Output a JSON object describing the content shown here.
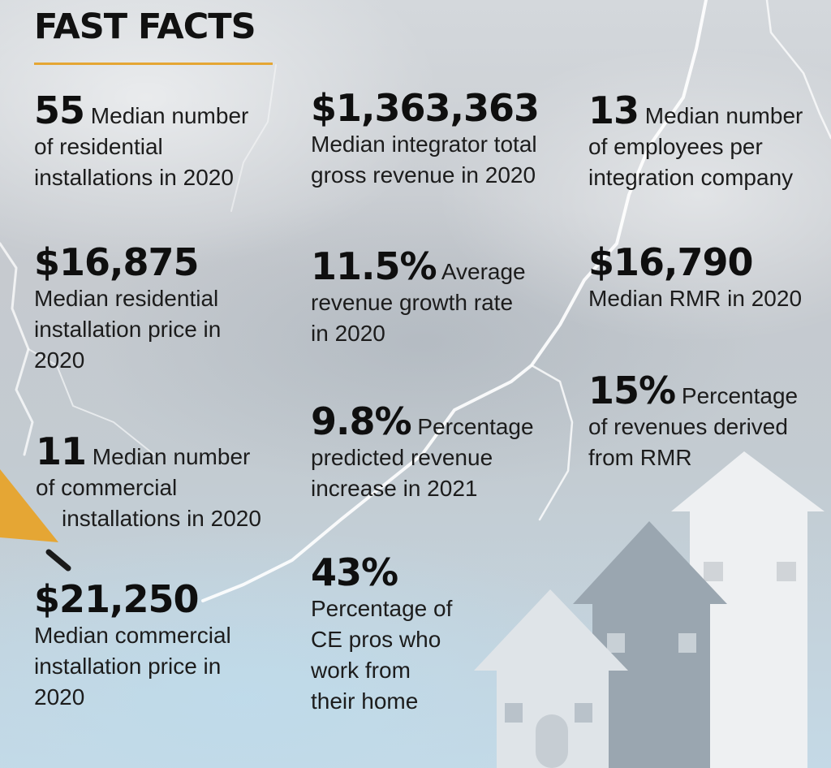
{
  "header": {
    "title": "FAST FACTS"
  },
  "colors": {
    "accent": "#e5a634",
    "text": "#141414"
  },
  "facts": {
    "residential_installs": {
      "value": "55",
      "line1": "Median number",
      "line2": "of residential",
      "line3": "installations in 2020"
    },
    "gross_revenue": {
      "value": "$1,363,363",
      "line1": "Median integrator total",
      "line2": "gross revenue in 2020"
    },
    "employees": {
      "value": "13",
      "line1": "Median number",
      "line2": "of employees per",
      "line3": "integration company"
    },
    "residential_price": {
      "value": "$16,875",
      "line1": "Median residential",
      "line2": "installation price in",
      "line3": "2020"
    },
    "growth_rate": {
      "value": "11.5%",
      "line1": "Average",
      "line2": "revenue growth rate",
      "line3": "in 2020"
    },
    "rmr": {
      "value": "$16,790",
      "line1": "Median RMR in 2020"
    },
    "rmr_share": {
      "value": "15%",
      "line1": "Percentage",
      "line2": "of revenues derived",
      "line3": "from RMR"
    },
    "commercial_installs": {
      "value": "11",
      "line1": "Median number",
      "line2": "of commercial",
      "line3": "installations in 2020"
    },
    "predicted_increase": {
      "value": "9.8%",
      "line1": "Percentage",
      "line2": "predicted revenue",
      "line3": "increase in 2021"
    },
    "commercial_price": {
      "value": "$21,250",
      "line1": "Median commercial",
      "line2": "installation price in",
      "line3": "2020"
    },
    "work_from_home": {
      "value": "43%",
      "line1": "Percentage of",
      "line2": "CE pros who",
      "line3": "work from",
      "line4": "their home"
    }
  }
}
